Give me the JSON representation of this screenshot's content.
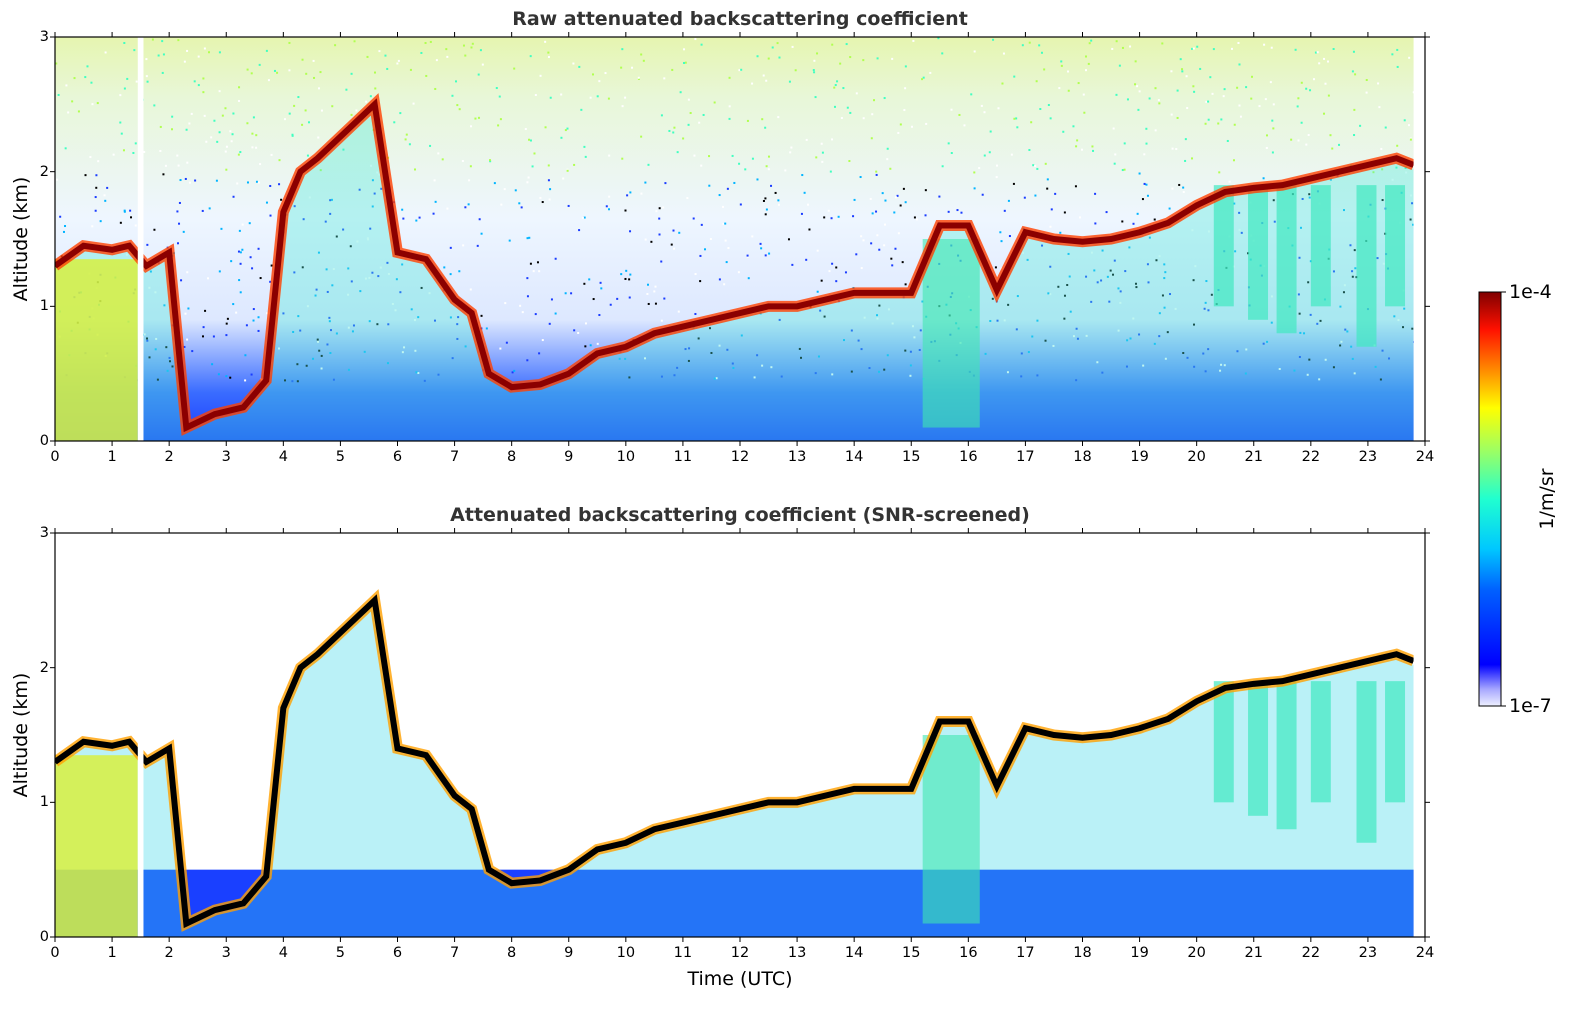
{
  "chart_data": [
    {
      "type": "heatmap",
      "title": "Raw attenuated backscattering coefficient",
      "xlabel": "",
      "ylabel": "Altitude (km)",
      "xlim": [
        0,
        24
      ],
      "ylim": [
        0,
        3
      ],
      "xticks": [
        "0",
        "1",
        "2",
        "3",
        "4",
        "5",
        "6",
        "7",
        "8",
        "9",
        "10",
        "11",
        "12",
        "13",
        "14",
        "15",
        "16",
        "17",
        "18",
        "19",
        "20",
        "21",
        "22",
        "23",
        "24"
      ],
      "yticks": [
        "0",
        "1",
        "2",
        "3"
      ],
      "layer_top_km": {
        "x": [
          0,
          0.5,
          1,
          1.3,
          1.6,
          2,
          2.3,
          2.8,
          3.3,
          3.7,
          4,
          4.3,
          4.6,
          5.6,
          6,
          6.5,
          7,
          7.3,
          7.6,
          8,
          8.5,
          9,
          9.5,
          10,
          10.5,
          11,
          11.5,
          12,
          12.5,
          13,
          13.5,
          14,
          14.5,
          15,
          15.5,
          16,
          16.5,
          17,
          17.5,
          18,
          18.5,
          19,
          19.5,
          20,
          20.5,
          21,
          21.5,
          22,
          22.5,
          23,
          23.5,
          23.8
        ],
        "y": [
          1.3,
          1.45,
          1.42,
          1.45,
          1.3,
          1.4,
          0.1,
          0.2,
          0.25,
          0.45,
          1.7,
          2.0,
          2.1,
          2.5,
          1.4,
          1.35,
          1.05,
          0.95,
          0.5,
          0.4,
          0.42,
          0.5,
          0.65,
          0.7,
          0.8,
          0.85,
          0.9,
          0.95,
          1.0,
          1.0,
          1.05,
          1.1,
          1.1,
          1.1,
          1.6,
          1.6,
          1.12,
          1.55,
          1.5,
          1.48,
          1.5,
          1.55,
          1.62,
          1.75,
          1.85,
          1.88,
          1.9,
          1.95,
          2.0,
          2.05,
          2.1,
          2.05
        ]
      }
    },
    {
      "type": "heatmap",
      "title": "Attenuated backscattering coefficient (SNR-screened)",
      "xlabel": "Time (UTC)",
      "ylabel": "Altitude (km)",
      "xlim": [
        0,
        24
      ],
      "ylim": [
        0,
        3
      ],
      "xticks": [
        "0",
        "1",
        "2",
        "3",
        "4",
        "5",
        "6",
        "7",
        "8",
        "9",
        "10",
        "11",
        "12",
        "13",
        "14",
        "15",
        "16",
        "17",
        "18",
        "19",
        "20",
        "21",
        "22",
        "23",
        "24"
      ],
      "yticks": [
        "0",
        "1",
        "2",
        "3"
      ],
      "layer_top_km": {
        "x": [
          0,
          0.5,
          1,
          1.3,
          1.6,
          2,
          2.3,
          2.8,
          3.3,
          3.7,
          4,
          4.3,
          4.6,
          5.6,
          6,
          6.5,
          7,
          7.3,
          7.6,
          8,
          8.5,
          9,
          9.5,
          10,
          10.5,
          11,
          11.5,
          12,
          12.5,
          13,
          13.5,
          14,
          14.5,
          15,
          15.5,
          16,
          16.5,
          17,
          17.5,
          18,
          18.5,
          19,
          19.5,
          20,
          20.5,
          21,
          21.5,
          22,
          22.5,
          23,
          23.5,
          23.8
        ],
        "y": [
          1.3,
          1.45,
          1.42,
          1.45,
          1.3,
          1.4,
          0.1,
          0.2,
          0.25,
          0.45,
          1.7,
          2.0,
          2.1,
          2.5,
          1.4,
          1.35,
          1.05,
          0.95,
          0.5,
          0.4,
          0.42,
          0.5,
          0.65,
          0.7,
          0.8,
          0.85,
          0.9,
          0.95,
          1.0,
          1.0,
          1.05,
          1.1,
          1.1,
          1.1,
          1.6,
          1.6,
          1.12,
          1.55,
          1.5,
          1.48,
          1.5,
          1.55,
          1.62,
          1.75,
          1.85,
          1.88,
          1.9,
          1.95,
          2.0,
          2.05,
          2.1,
          2.05
        ]
      }
    }
  ],
  "colorbar": {
    "label": "1/m/sr",
    "max_label": "1e-4",
    "min_label": "1e-7",
    "scale": "log",
    "colormap": "jet",
    "range": [
      1e-07,
      0.0001
    ]
  }
}
